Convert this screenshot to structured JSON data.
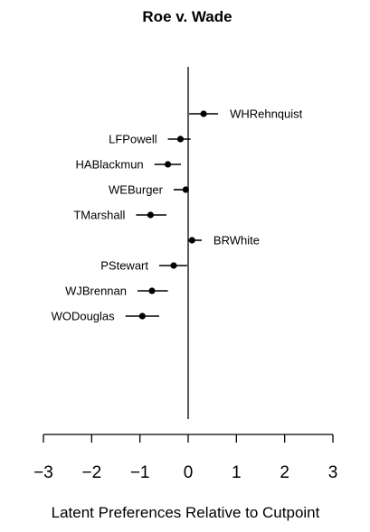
{
  "chart_data": {
    "type": "scatter",
    "title": "Roe v. Wade",
    "xlabel": "Latent Preferences Relative to Cutpoint",
    "ylabel": "",
    "xlim": [
      -3,
      3
    ],
    "x_ticks": [
      -3,
      -2,
      -1,
      0,
      1,
      2,
      3
    ],
    "x_tick_labels": [
      "−3",
      "−2",
      "−1",
      "0",
      "1",
      "2",
      "3"
    ],
    "reference_line_x": 0,
    "grid": false,
    "justices": [
      {
        "name": "WHRehnquist",
        "estimate": 0.32,
        "lower": 0.02,
        "upper": 0.62
      },
      {
        "name": "LFPowell",
        "estimate": -0.16,
        "lower": -0.42,
        "upper": 0.05
      },
      {
        "name": "HABlackmun",
        "estimate": -0.42,
        "lower": -0.7,
        "upper": -0.15
      },
      {
        "name": "WEBurger",
        "estimate": -0.05,
        "lower": -0.3,
        "upper": 0.0
      },
      {
        "name": "TMarshall",
        "estimate": -0.78,
        "lower": -1.08,
        "upper": -0.45
      },
      {
        "name": "BRWhite",
        "estimate": 0.08,
        "lower": 0.0,
        "upper": 0.28
      },
      {
        "name": "PStewart",
        "estimate": -0.3,
        "lower": -0.6,
        "upper": -0.02
      },
      {
        "name": "WJBrennan",
        "estimate": -0.75,
        "lower": -1.05,
        "upper": -0.42
      },
      {
        "name": "WODouglas",
        "estimate": -0.95,
        "lower": -1.3,
        "upper": -0.6
      }
    ]
  }
}
